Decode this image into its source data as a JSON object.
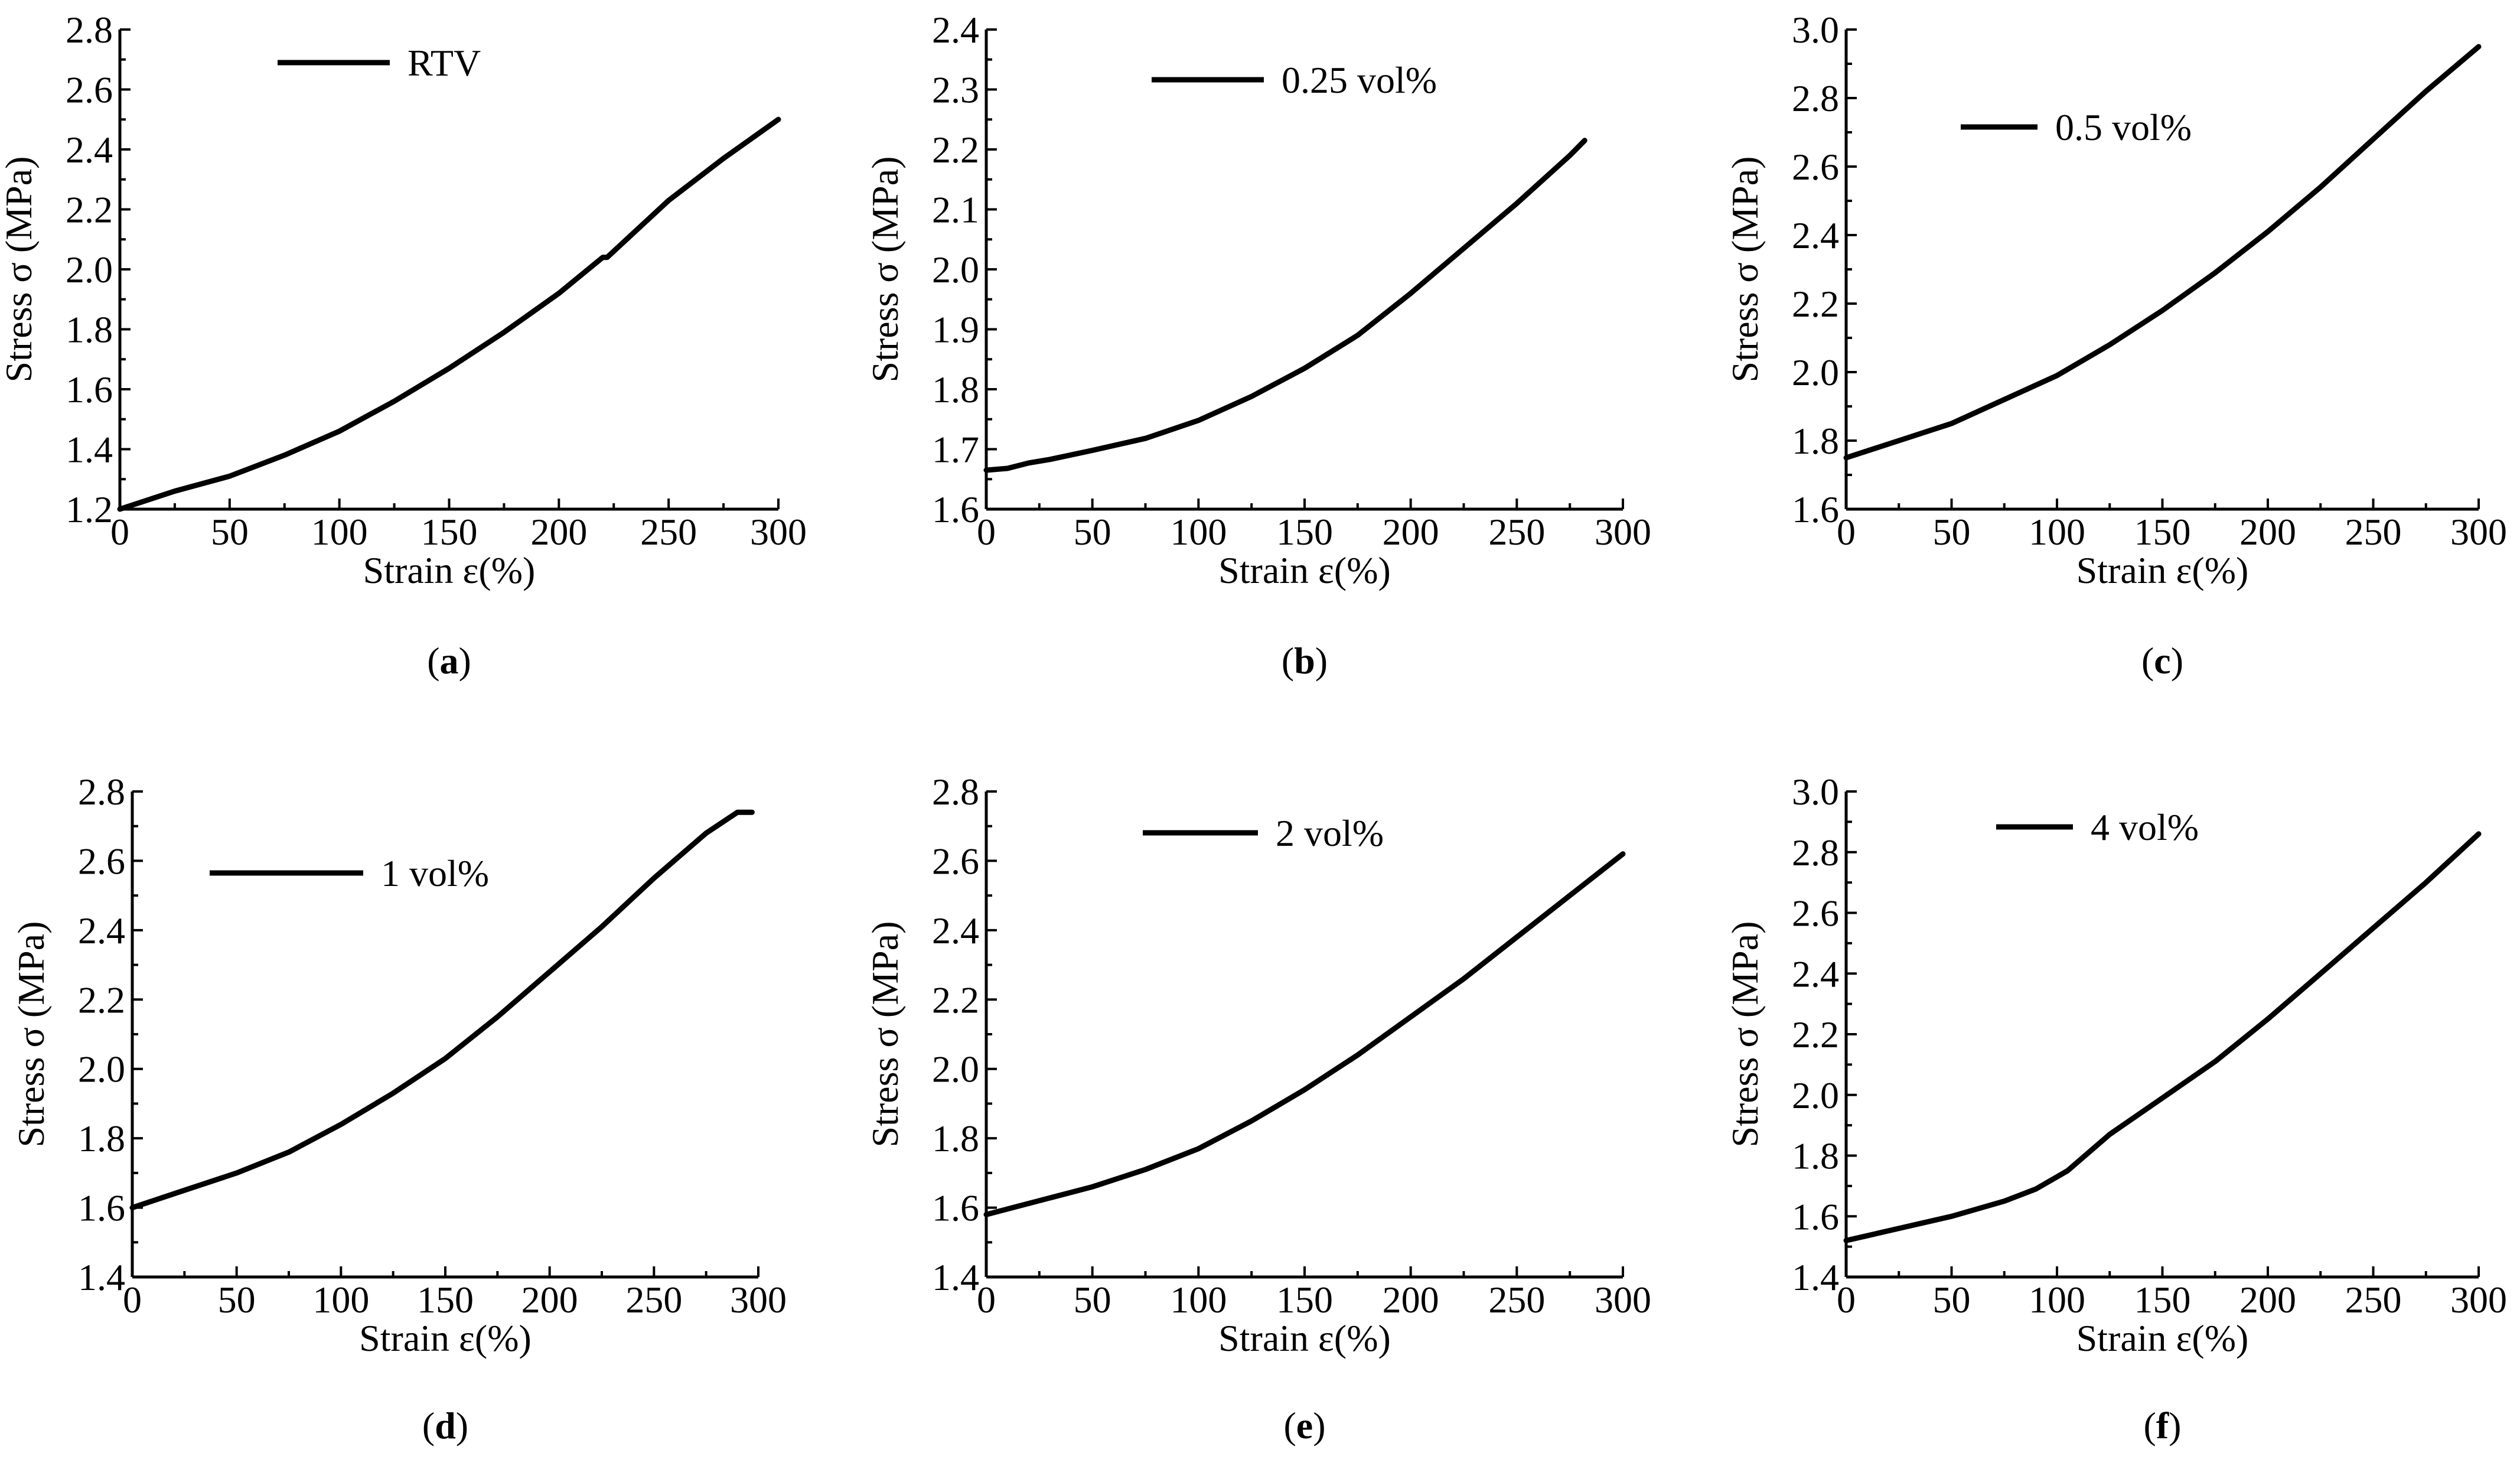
{
  "chart_data": [
    {
      "type": "line",
      "panel_label": "a",
      "xlabel": "Strain  ε(%)",
      "ylabel": "Stress σ (MPa)",
      "xlim": [
        0,
        300
      ],
      "ylim": [
        1.2,
        2.8
      ],
      "xticks": [
        0,
        50,
        100,
        150,
        200,
        250,
        300
      ],
      "yticks": [
        1.2,
        1.4,
        1.6,
        1.8,
        2.0,
        2.2,
        2.4,
        2.6,
        2.8
      ],
      "xtick_labels": [
        "0",
        "50",
        "100",
        "150",
        "200",
        "250",
        "300"
      ],
      "ytick_labels": [
        "1.2",
        "1.4",
        "1.6",
        "1.8",
        "2.0",
        "2.2",
        "2.4",
        "2.6",
        "2.8"
      ],
      "legend_position": "top-left",
      "series": [
        {
          "name": "RTV",
          "x": [
            0,
            25,
            50,
            75,
            100,
            125,
            150,
            175,
            200,
            220,
            222,
            250,
            275,
            300
          ],
          "y": [
            1.2,
            1.26,
            1.31,
            1.38,
            1.46,
            1.56,
            1.67,
            1.79,
            1.92,
            2.04,
            2.04,
            2.23,
            2.37,
            2.5
          ]
        }
      ]
    },
    {
      "type": "line",
      "panel_label": "b",
      "xlabel": "Strain  ε(%)",
      "ylabel": "Stress σ (MPa)",
      "xlim": [
        0,
        300
      ],
      "ylim": [
        1.6,
        2.4
      ],
      "xticks": [
        0,
        50,
        100,
        150,
        200,
        250,
        300
      ],
      "yticks": [
        1.6,
        1.7,
        1.8,
        1.9,
        2.0,
        2.1,
        2.2,
        2.3,
        2.4
      ],
      "xtick_labels": [
        "0",
        "50",
        "100",
        "150",
        "200",
        "250",
        "300"
      ],
      "ytick_labels": [
        "1.6",
        "1.7",
        "1.8",
        "1.9",
        "2.0",
        "2.1",
        "2.2",
        "2.3",
        "2.4"
      ],
      "legend_position": "top-center",
      "series": [
        {
          "name": "0.25 vol%",
          "x": [
            0,
            10,
            20,
            30,
            50,
            75,
            100,
            125,
            150,
            175,
            200,
            225,
            250,
            275,
            282
          ],
          "y": [
            1.665,
            1.668,
            1.677,
            1.683,
            1.698,
            1.718,
            1.748,
            1.788,
            1.835,
            1.89,
            1.96,
            2.035,
            2.11,
            2.19,
            2.215
          ]
        }
      ]
    },
    {
      "type": "line",
      "panel_label": "c",
      "xlabel": "Strain  ε(%)",
      "ylabel": "Stress σ (MPa)",
      "xlim": [
        0,
        300
      ],
      "ylim": [
        1.6,
        3.0
      ],
      "xticks": [
        0,
        50,
        100,
        150,
        200,
        250,
        300
      ],
      "yticks": [
        1.6,
        1.8,
        2.0,
        2.2,
        2.4,
        2.6,
        2.8,
        3.0
      ],
      "xtick_labels": [
        "0",
        "50",
        "100",
        "150",
        "200",
        "250",
        "300"
      ],
      "ytick_labels": [
        "1.6",
        "1.8",
        "2.0",
        "2.2",
        "2.4",
        "2.6",
        "2.8",
        "3.0"
      ],
      "legend_position": "top-center",
      "series": [
        {
          "name": "0.5 vol%",
          "x": [
            0,
            25,
            50,
            75,
            100,
            125,
            150,
            175,
            200,
            225,
            250,
            275,
            300
          ],
          "y": [
            1.75,
            1.8,
            1.85,
            1.92,
            1.99,
            2.08,
            2.18,
            2.29,
            2.41,
            2.54,
            2.68,
            2.82,
            2.95
          ]
        }
      ]
    },
    {
      "type": "line",
      "panel_label": "d",
      "xlabel": "Strain  ε(%)",
      "ylabel": "Stress σ (MPa)",
      "xlim": [
        0,
        300
      ],
      "ylim": [
        1.4,
        2.8
      ],
      "xticks": [
        0,
        50,
        100,
        150,
        200,
        250,
        300
      ],
      "yticks": [
        1.4,
        1.6,
        1.8,
        2.0,
        2.2,
        2.4,
        2.6,
        2.8
      ],
      "xtick_labels": [
        "0",
        "50",
        "100",
        "150",
        "200",
        "250",
        "300"
      ],
      "ytick_labels": [
        "1.4",
        "1.6",
        "1.8",
        "2.0",
        "2.2",
        "2.4",
        "2.6",
        "2.8"
      ],
      "legend_position": "top-left",
      "series": [
        {
          "name": "1 vol%",
          "x": [
            0,
            25,
            50,
            75,
            100,
            125,
            150,
            175,
            200,
            225,
            250,
            275,
            290,
            297
          ],
          "y": [
            1.6,
            1.65,
            1.7,
            1.76,
            1.84,
            1.93,
            2.03,
            2.15,
            2.28,
            2.41,
            2.55,
            2.68,
            2.74,
            2.74
          ]
        }
      ]
    },
    {
      "type": "line",
      "panel_label": "e",
      "xlabel": "Strain ε(%)",
      "ylabel": "Stress σ (MPa)",
      "xlim": [
        0,
        300
      ],
      "ylim": [
        1.4,
        2.8
      ],
      "xticks": [
        0,
        50,
        100,
        150,
        200,
        250,
        300
      ],
      "yticks": [
        1.4,
        1.6,
        1.8,
        2.0,
        2.2,
        2.4,
        2.6,
        2.8
      ],
      "xtick_labels": [
        "0",
        "50",
        "100",
        "150",
        "200",
        "250",
        "300"
      ],
      "ytick_labels": [
        "1.4",
        "1.6",
        "1.8",
        "2.0",
        "2.2",
        "2.4",
        "2.6",
        "2.8"
      ],
      "legend_position": "top-center",
      "series": [
        {
          "name": "2 vol%",
          "x": [
            0,
            25,
            50,
            75,
            100,
            125,
            150,
            175,
            200,
            225,
            250,
            275,
            300
          ],
          "y": [
            1.58,
            1.62,
            1.66,
            1.71,
            1.77,
            1.85,
            1.94,
            2.04,
            2.15,
            2.26,
            2.38,
            2.5,
            2.62
          ]
        }
      ]
    },
    {
      "type": "line",
      "panel_label": "f",
      "xlabel": "Strain ε(%)",
      "ylabel": "Stress σ (MPa)",
      "xlim": [
        0,
        300
      ],
      "ylim": [
        1.4,
        3.0
      ],
      "xticks": [
        0,
        50,
        100,
        150,
        200,
        250,
        300
      ],
      "yticks": [
        1.4,
        1.6,
        1.8,
        2.0,
        2.2,
        2.4,
        2.6,
        2.8,
        3.0
      ],
      "xtick_labels": [
        "0",
        "50",
        "100",
        "150",
        "200",
        "250",
        "300"
      ],
      "ytick_labels": [
        "1.4",
        "1.6",
        "1.8",
        "2.0",
        "2.2",
        "2.4",
        "2.6",
        "2.8",
        "3.0"
      ],
      "legend_position": "top-center",
      "series": [
        {
          "name": "4 vol%",
          "x": [
            0,
            25,
            50,
            75,
            90,
            105,
            125,
            150,
            175,
            200,
            225,
            250,
            275,
            300
          ],
          "y": [
            1.52,
            1.56,
            1.6,
            1.65,
            1.69,
            1.75,
            1.87,
            1.99,
            2.11,
            2.25,
            2.4,
            2.55,
            2.7,
            2.86
          ]
        }
      ]
    }
  ]
}
